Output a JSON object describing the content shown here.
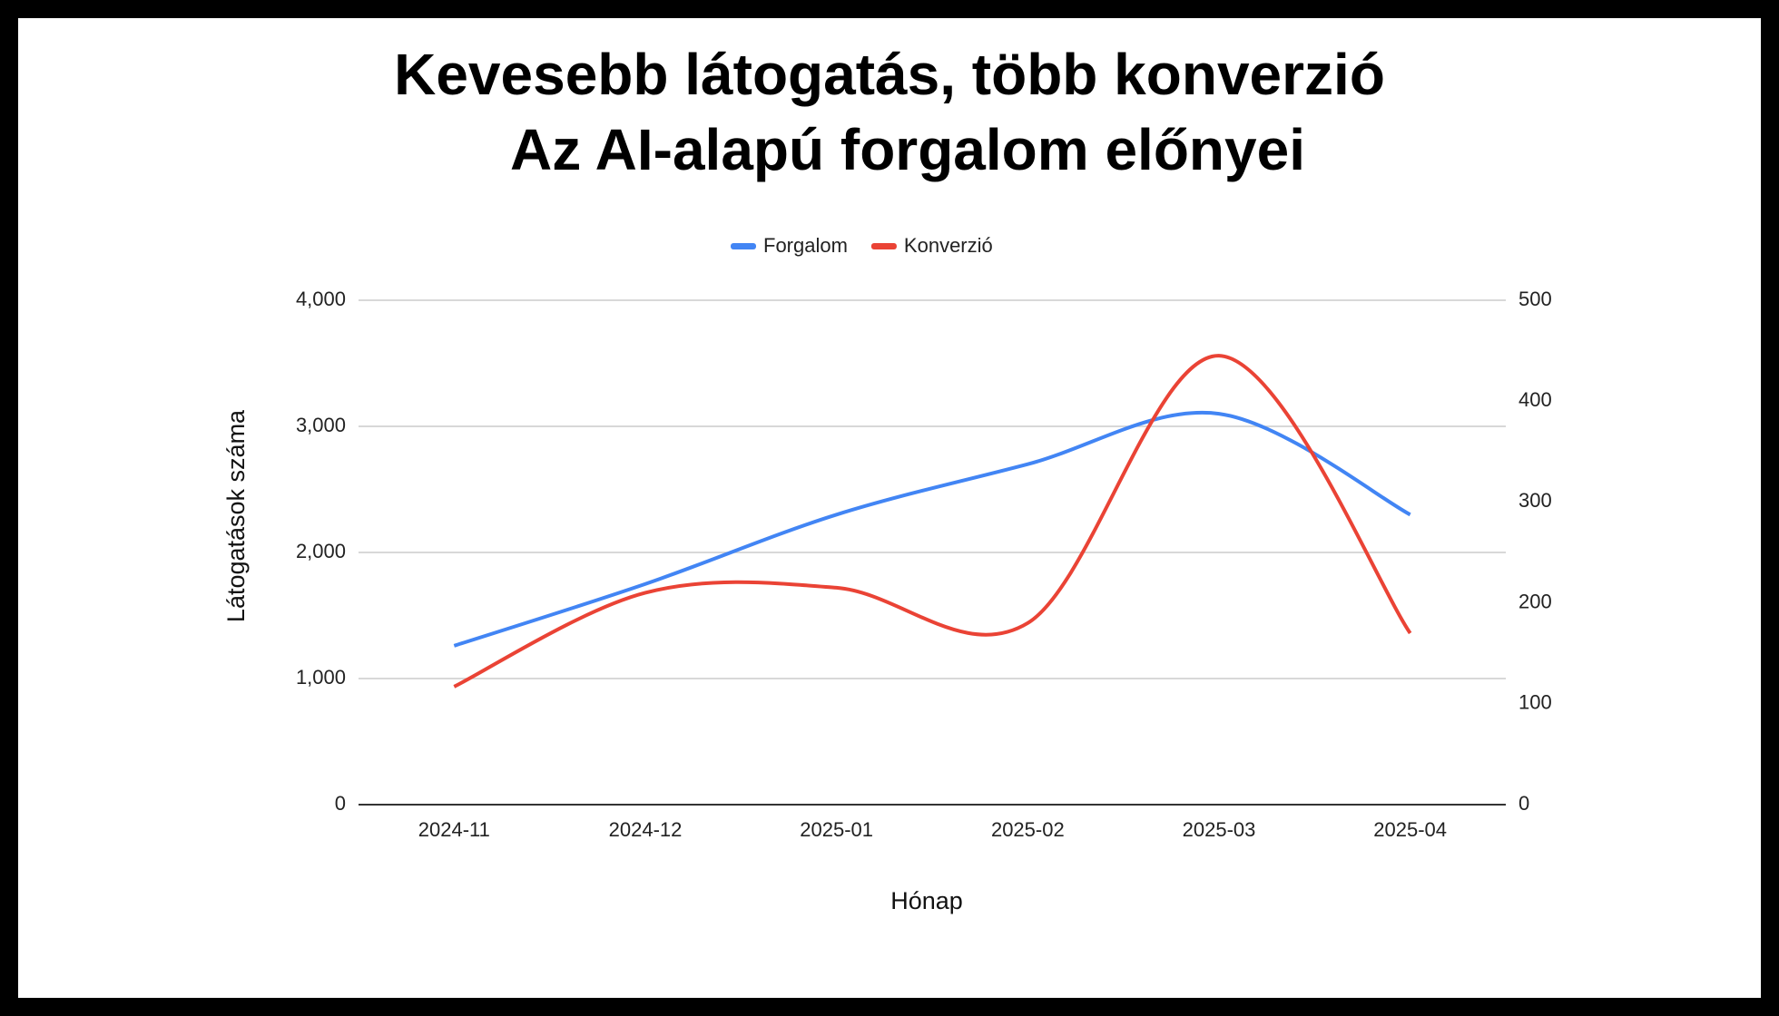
{
  "chart_data": {
    "type": "line",
    "title": "Kevesebb látogatás, több konverzió",
    "subtitle": "Az AI-alapú forgalom előnyei",
    "x_label": "Hónap",
    "y_label": "Látogatások száma",
    "categories": [
      "2024-11",
      "2024-12",
      "2025-01",
      "2025-02",
      "2025-03",
      "2025-04"
    ],
    "series": [
      {
        "name": "Forgalom",
        "color": "#4285f4",
        "values": [
          1260,
          1750,
          2300,
          2700,
          3100,
          2300
        ]
      },
      {
        "name": "Konverzió",
        "color": "#ea4335",
        "axis": "y2",
        "values": [
          117,
          210,
          215,
          180,
          445,
          170
        ]
      }
    ],
    "ylim": [
      0,
      4000
    ],
    "yticks": [
      0,
      {
        "value": 1000,
        "label": "1,000"
      },
      {
        "value": 2000,
        "label": "2,000"
      },
      {
        "value": 3000,
        "label": "3,000"
      },
      {
        "value": 4000,
        "label": "4,000"
      }
    ],
    "y2lim": [
      0,
      500
    ],
    "y2ticks": [
      0,
      100,
      200,
      300,
      400,
      500
    ],
    "grid": true,
    "smooth": true,
    "legend": "top"
  }
}
